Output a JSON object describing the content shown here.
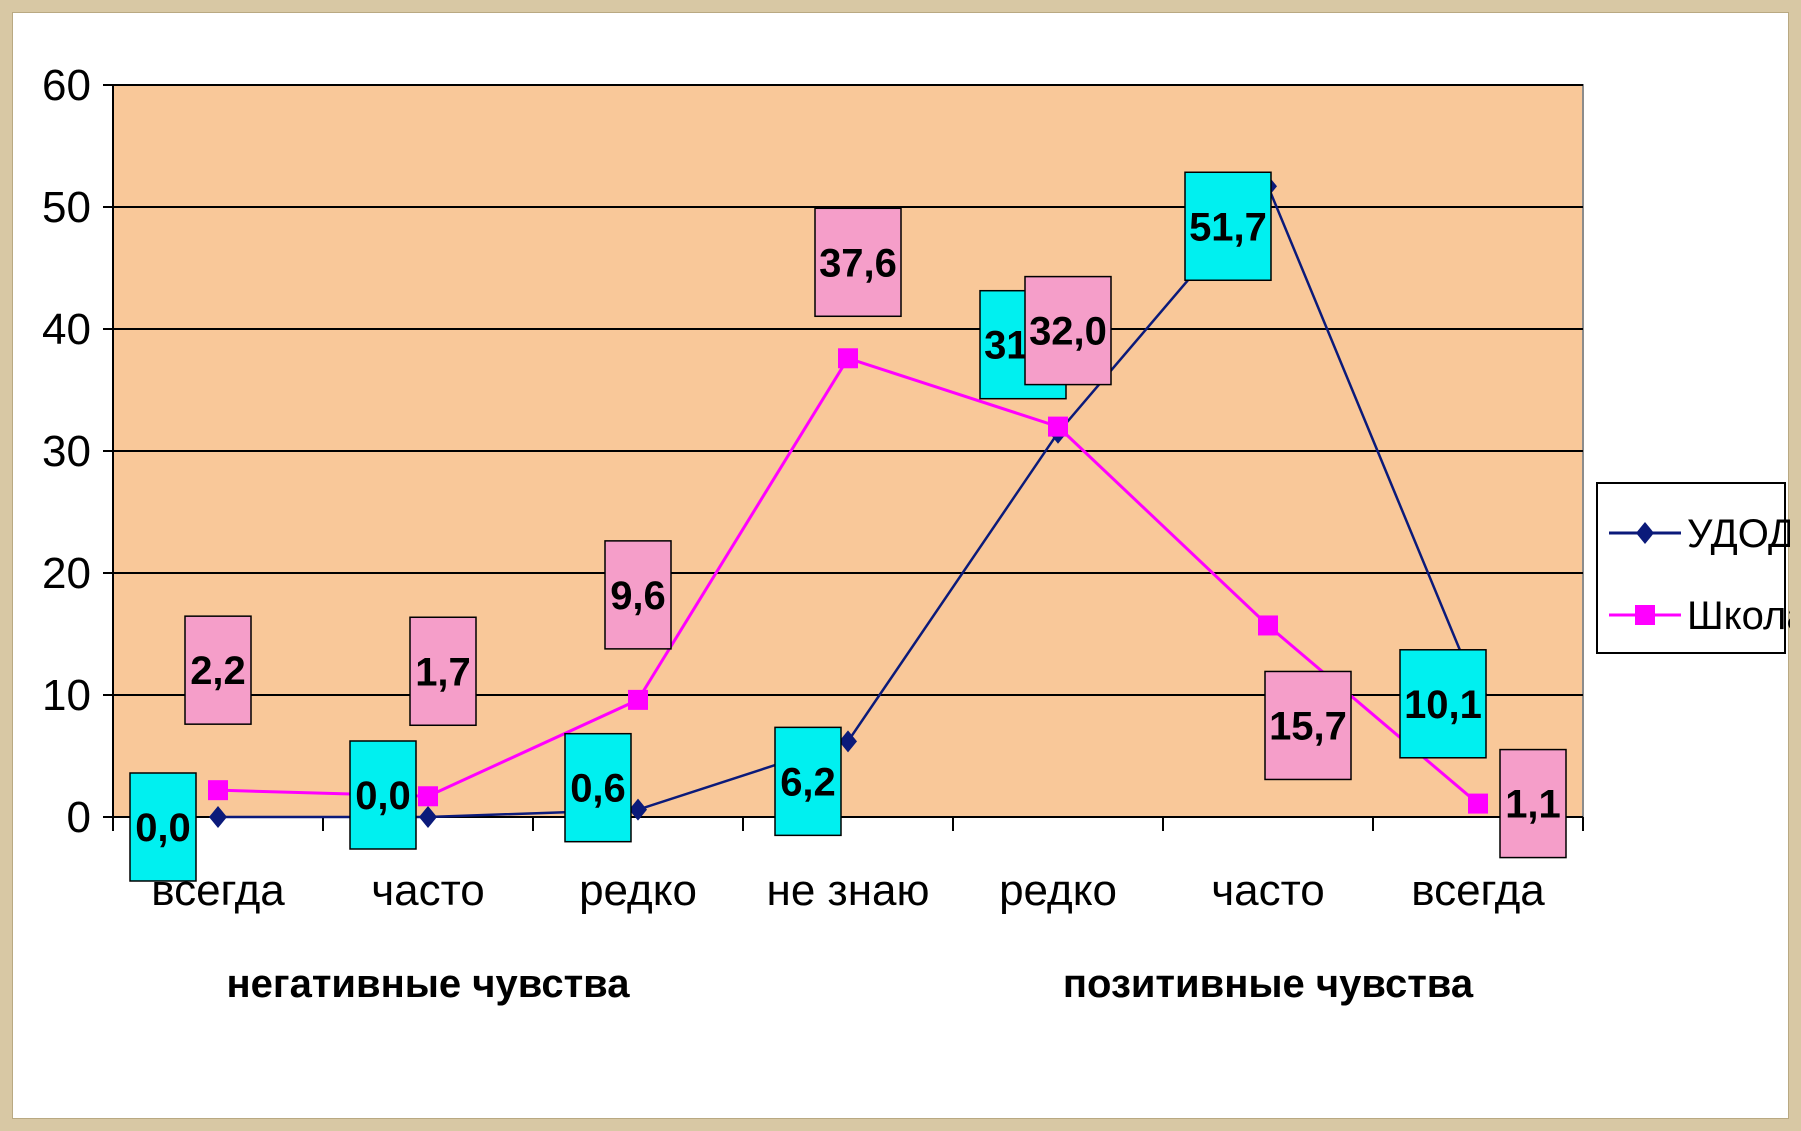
{
  "chart_data": {
    "type": "line",
    "categories": [
      "всегда",
      "часто",
      "редко",
      "не знаю",
      "редко",
      "часто",
      "всегда"
    ],
    "category_groups": [
      {
        "label": "негативные чувства",
        "from": 0,
        "to": 2
      },
      {
        "label": "позитивные чувства",
        "from": 4,
        "to": 6
      }
    ],
    "ylim": [
      0,
      60
    ],
    "yticks": [
      0,
      10,
      20,
      30,
      40,
      50,
      60
    ],
    "grid": true,
    "plot_background": "#f9c899",
    "legend_position": "right",
    "series": [
      {
        "name": "УДОД",
        "color": "#0b1a7a",
        "marker": "diamond",
        "label_background": "#00f0f0",
        "values": [
          0.0,
          0.0,
          0.6,
          6.2,
          31.5,
          51.7,
          10.1
        ],
        "labels": [
          "0,0",
          "0,0",
          "0,6",
          "6,2",
          "31,5",
          "51,7",
          "10,1"
        ]
      },
      {
        "name": "Школа",
        "color": "#ff00ff",
        "marker": "square",
        "label_background": "#f59ec9",
        "values": [
          2.2,
          1.7,
          9.6,
          37.6,
          32.0,
          15.7,
          1.1
        ],
        "labels": [
          "2,2",
          "1,7",
          "9,6",
          "37,6",
          "32,0",
          "15,7",
          "1,1"
        ]
      }
    ]
  }
}
